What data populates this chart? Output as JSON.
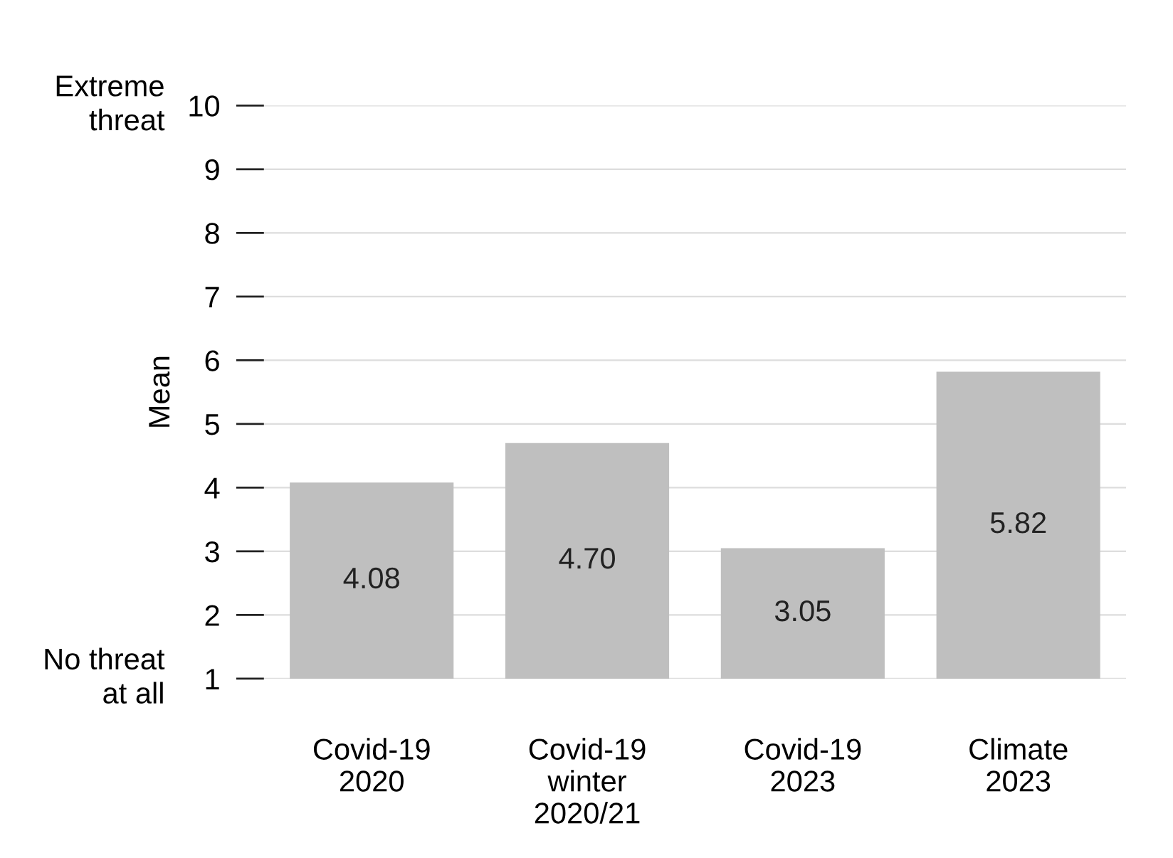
{
  "chart_data": {
    "type": "bar",
    "ylabel": "Mean",
    "categories": [
      "Covid-19\n2020",
      "Covid-19\nwinter\n2020/21",
      "Covid-19\n2023",
      "Climate\n2023"
    ],
    "values": [
      4.08,
      4.7,
      3.05,
      5.82
    ],
    "value_labels": [
      "4.08",
      "4.70",
      "3.05",
      "5.82"
    ],
    "color": "#bfbfbf",
    "ylim": [
      1,
      10
    ],
    "yticks": [
      1,
      2,
      3,
      4,
      5,
      6,
      7,
      8,
      9,
      10
    ],
    "grid": "y",
    "legend": false,
    "annotations": [
      "Extreme\nthreat",
      "No threat\nat all"
    ]
  }
}
